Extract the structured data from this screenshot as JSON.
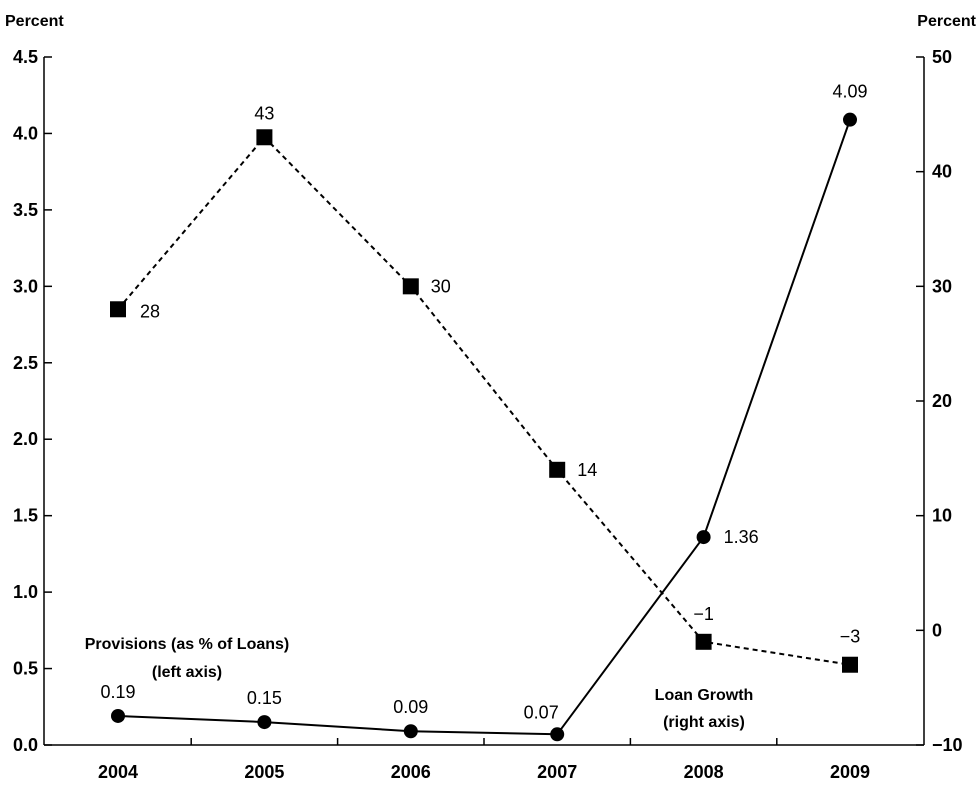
{
  "chart_data": {
    "type": "line",
    "categories": [
      "2004",
      "2005",
      "2006",
      "2007",
      "2008",
      "2009"
    ],
    "left_axis": {
      "unit": "Percent",
      "ylim": [
        0,
        4.5
      ],
      "ticks": [
        "0.0",
        "0.5",
        "1.0",
        "1.5",
        "2.0",
        "2.5",
        "3.0",
        "3.5",
        "4.0",
        "4.5"
      ]
    },
    "right_axis": {
      "unit": "Percent",
      "ylim": [
        -10,
        50
      ],
      "ticks": [
        "−10",
        "0",
        "10",
        "20",
        "30",
        "40",
        "50"
      ]
    },
    "series": [
      {
        "name_lines": [
          "Provisions (as % of Loans)",
          "(left axis)"
        ],
        "axis": "left",
        "style": "solid",
        "marker": "circle",
        "values": [
          0.19,
          0.15,
          0.09,
          0.07,
          1.36,
          4.09
        ],
        "labels": [
          "0.19",
          "0.15",
          "0.09",
          "0.07",
          "1.36",
          "4.09"
        ]
      },
      {
        "name_lines": [
          "Loan Growth",
          "(right axis)"
        ],
        "axis": "right",
        "style": "dashed",
        "marker": "square",
        "values": [
          28,
          43,
          30,
          14,
          -1,
          -3
        ],
        "labels": [
          "28",
          "43",
          "30",
          "14",
          "−1",
          "−3"
        ]
      }
    ],
    "grid": false
  }
}
